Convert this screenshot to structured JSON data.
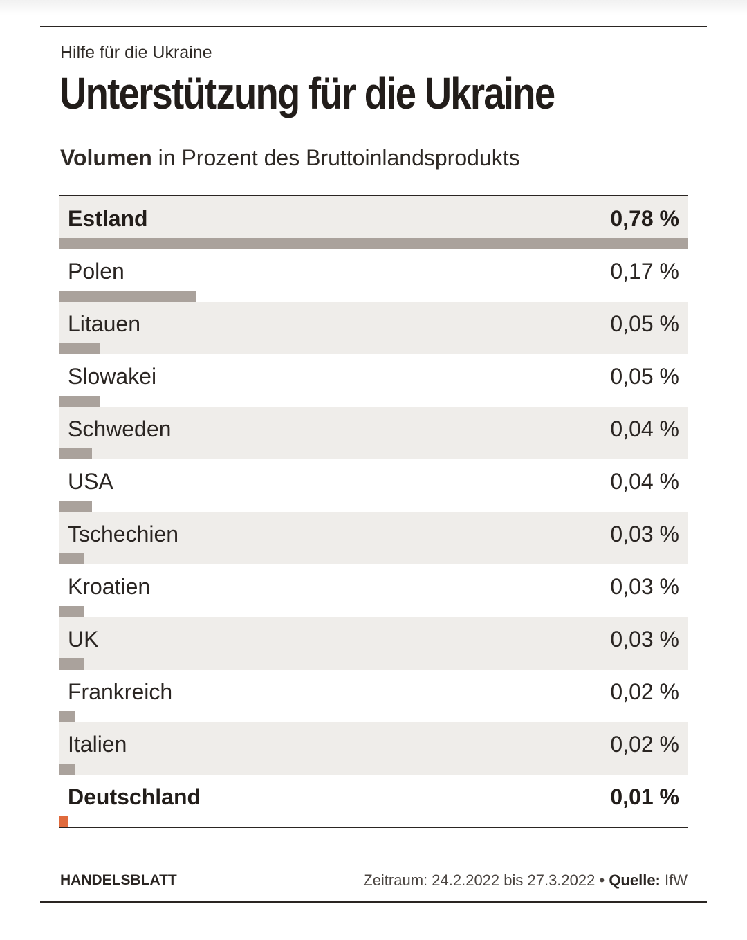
{
  "header": {
    "kicker": "Hilfe für die Ukraine",
    "title": "Unterstützung für die Ukraine"
  },
  "subtitle": {
    "bold": "Volumen",
    "text": " in Prozent des Bruttoinlandsprodukts"
  },
  "colors": {
    "bar": "#aaa29c",
    "highlight_bar": "#e06a3c",
    "row_shade": "#efedea"
  },
  "chart_data": {
    "type": "bar",
    "orientation": "horizontal",
    "title": "Unterstützung für die Ukraine",
    "subtitle": "Volumen in Prozent des Bruttoinlandsprodukts",
    "unit": "% des BIP",
    "xlim": [
      0,
      0.78
    ],
    "rows": [
      {
        "label": "Estland",
        "value": 0.78,
        "display": "0,78 %",
        "bold": true,
        "highlight": false
      },
      {
        "label": "Polen",
        "value": 0.17,
        "display": "0,17 %",
        "bold": false,
        "highlight": false
      },
      {
        "label": "Litauen",
        "value": 0.05,
        "display": "0,05 %",
        "bold": false,
        "highlight": false
      },
      {
        "label": "Slowakei",
        "value": 0.05,
        "display": "0,05 %",
        "bold": false,
        "highlight": false
      },
      {
        "label": "Schweden",
        "value": 0.04,
        "display": "0,04 %",
        "bold": false,
        "highlight": false
      },
      {
        "label": "USA",
        "value": 0.04,
        "display": "0,04 %",
        "bold": false,
        "highlight": false
      },
      {
        "label": "Tschechien",
        "value": 0.03,
        "display": "0,03 %",
        "bold": false,
        "highlight": false
      },
      {
        "label": "Kroatien",
        "value": 0.03,
        "display": "0,03 %",
        "bold": false,
        "highlight": false
      },
      {
        "label": "UK",
        "value": 0.03,
        "display": "0,03 %",
        "bold": false,
        "highlight": false
      },
      {
        "label": "Frankreich",
        "value": 0.02,
        "display": "0,02 %",
        "bold": false,
        "highlight": false
      },
      {
        "label": "Italien",
        "value": 0.02,
        "display": "0,02 %",
        "bold": false,
        "highlight": false
      },
      {
        "label": "Deutschland",
        "value": 0.01,
        "display": "0,01 %",
        "bold": true,
        "highlight": true
      }
    ]
  },
  "footer": {
    "brand": "HANDELSBLATT",
    "period": "Zeitraum: 24.2.2022 bis 27.3.2022",
    "separator": " • ",
    "source_label": "Quelle:",
    "source_value": " IfW"
  }
}
